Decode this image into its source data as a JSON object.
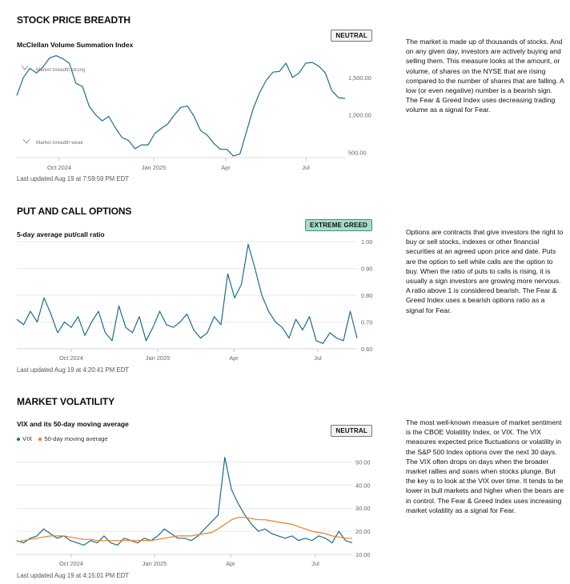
{
  "colors": {
    "vix": "#1a6e8c",
    "ma": "#ef7d21",
    "line": "#1a6e8c",
    "grid": "#e3e3e3"
  },
  "breadth": {
    "title": "STOCK PRICE BREADTH",
    "subtitle": "McClellan Volume Summation Index",
    "badge": "NEUTRAL",
    "annot_strong": "Market breadth strong",
    "annot_weak": "Market breadth weak",
    "updated": "Last updated Aug 19 at 7:59:59 PM EDT",
    "description": "The market is made up of thousands of stocks. And on any given day, investors are actively buying and selling them. This measure looks at the amount, or volume, of shares on the NYSE that are rising compared to the number of shares that are falling. A low (or even negative) number is a bearish sign. The Fear & Greed Index uses decreasing trading volume as a signal for Fear."
  },
  "options": {
    "title": "PUT AND CALL OPTIONS",
    "subtitle": "5-day average put/call ratio",
    "badge": "EXTREME GREED",
    "updated": "Last updated Aug 19 at 4:20:41 PM EDT",
    "description": "Options are contracts that give investors the right to buy or sell stocks, indexes or other financial securities at an agreed upon price and date. Puts are the option to sell while calls are the option to buy. When the ratio of puts to calls is rising, it is usually a sign investors are growing more nervous. A ratio above 1 is considered bearish. The Fear & Greed Index uses a bearish options ratio as a signal for Fear."
  },
  "volatility": {
    "title": "MARKET VOLATILITY",
    "subtitle": "VIX and its 50-day moving average",
    "legend_vix": "VIX",
    "legend_ma": "50-day moving average",
    "badge": "NEUTRAL",
    "updated": "Last updated Aug 19 at 4:15:01 PM EDT",
    "description": "The most well-known measure of market sentiment is the CBOE Volatility Index, or VIX. The VIX measures expected price fluctuations or volatility in the S&P 500 Index options over the next 30 days. The VIX often drops on days when the broader market rallies and soars when stocks plunge. But the key is to look at the VIX over time. It tends to be lower in bull markets and higher when the bears are in control. The Fear & Greed Index uses increasing market volatility as a signal for Fear."
  },
  "chart_data": [
    {
      "type": "line",
      "title": "McClellan Volume Summation Index",
      "x_ticks": [
        "Oct 2024",
        "Jan 2025",
        "Apr",
        "Jul"
      ],
      "y_ticks": [
        "1,500.00",
        "1,000.00",
        "500.00"
      ],
      "y_tick_values": [
        1500,
        1000,
        500
      ],
      "ylim": [
        430,
        1850
      ],
      "x": [
        0,
        0.02,
        0.04,
        0.06,
        0.08,
        0.1,
        0.12,
        0.14,
        0.16,
        0.18,
        0.2,
        0.22,
        0.24,
        0.26,
        0.28,
        0.3,
        0.32,
        0.34,
        0.36,
        0.38,
        0.4,
        0.42,
        0.44,
        0.46,
        0.48,
        0.5,
        0.52,
        0.54,
        0.56,
        0.58,
        0.6,
        0.62,
        0.64,
        0.66,
        0.68,
        0.7,
        0.72,
        0.74,
        0.76,
        0.78,
        0.8,
        0.82,
        0.84,
        0.86,
        0.88,
        0.9,
        0.92,
        0.94,
        0.96,
        0.98,
        1.0
      ],
      "series": [
        {
          "name": "McClellan Volume Summation Index",
          "values": [
            1260,
            1500,
            1620,
            1560,
            1640,
            1760,
            1790,
            1750,
            1690,
            1420,
            1380,
            1120,
            1000,
            920,
            980,
            830,
            700,
            660,
            550,
            600,
            600,
            750,
            820,
            880,
            1000,
            1100,
            1120,
            980,
            790,
            730,
            620,
            540,
            540,
            450,
            480,
            780,
            1080,
            1300,
            1460,
            1570,
            1580,
            1690,
            1500,
            1560,
            1690,
            1700,
            1650,
            1560,
            1320,
            1230,
            1220
          ]
        }
      ]
    },
    {
      "type": "line",
      "title": "5-day average put/call ratio",
      "x_ticks": [
        "Oct 2024",
        "Jan 2025",
        "Apr",
        "Jul"
      ],
      "y_ticks": [
        "1.00",
        "0.90",
        "0.80",
        "0.70",
        "0.60"
      ],
      "y_tick_values": [
        1.0,
        0.9,
        0.8,
        0.7,
        0.6
      ],
      "ylim": [
        0.6,
        1.0
      ],
      "x": [
        0,
        0.02,
        0.04,
        0.06,
        0.08,
        0.1,
        0.12,
        0.14,
        0.16,
        0.18,
        0.2,
        0.22,
        0.24,
        0.26,
        0.28,
        0.3,
        0.32,
        0.34,
        0.36,
        0.38,
        0.4,
        0.42,
        0.44,
        0.46,
        0.48,
        0.5,
        0.52,
        0.54,
        0.56,
        0.58,
        0.6,
        0.62,
        0.64,
        0.66,
        0.68,
        0.7,
        0.72,
        0.74,
        0.76,
        0.78,
        0.8,
        0.82,
        0.84,
        0.86,
        0.88,
        0.9,
        0.92,
        0.94,
        0.96,
        0.98,
        1.0
      ],
      "series": [
        {
          "name": "Put/call ratio",
          "values": [
            0.71,
            0.69,
            0.74,
            0.7,
            0.79,
            0.73,
            0.66,
            0.7,
            0.68,
            0.72,
            0.65,
            0.7,
            0.74,
            0.66,
            0.63,
            0.76,
            0.68,
            0.66,
            0.72,
            0.63,
            0.68,
            0.74,
            0.69,
            0.68,
            0.7,
            0.73,
            0.67,
            0.64,
            0.66,
            0.72,
            0.69,
            0.88,
            0.79,
            0.84,
            0.99,
            0.9,
            0.8,
            0.74,
            0.7,
            0.68,
            0.64,
            0.71,
            0.67,
            0.72,
            0.63,
            0.62,
            0.66,
            0.64,
            0.63,
            0.74,
            0.64
          ]
        }
      ]
    },
    {
      "type": "line",
      "title": "VIX and its 50-day moving average",
      "x_ticks": [
        "Oct 2024",
        "Jan 2025",
        "Apr",
        "Jul"
      ],
      "y_ticks": [
        "50.00",
        "40.00",
        "30.00",
        "20.00",
        "10.00"
      ],
      "y_tick_values": [
        50,
        40,
        30,
        20,
        10
      ],
      "ylim": [
        10,
        55
      ],
      "x": [
        0,
        0.02,
        0.04,
        0.06,
        0.08,
        0.1,
        0.12,
        0.14,
        0.16,
        0.18,
        0.2,
        0.22,
        0.24,
        0.26,
        0.28,
        0.3,
        0.32,
        0.34,
        0.36,
        0.38,
        0.4,
        0.42,
        0.44,
        0.46,
        0.48,
        0.5,
        0.52,
        0.54,
        0.56,
        0.58,
        0.6,
        0.62,
        0.64,
        0.66,
        0.68,
        0.7,
        0.72,
        0.74,
        0.76,
        0.78,
        0.8,
        0.82,
        0.84,
        0.86,
        0.88,
        0.9,
        0.92,
        0.94,
        0.96,
        0.98,
        1.0
      ],
      "series": [
        {
          "name": "VIX",
          "values": [
            16,
            15,
            17,
            18,
            21,
            19,
            17,
            18,
            16,
            15,
            14,
            16,
            15,
            18,
            15,
            14,
            17,
            16,
            15,
            17,
            16,
            18,
            21,
            19,
            17,
            17,
            16,
            18,
            21,
            24,
            27,
            52,
            38,
            32,
            27,
            23,
            20,
            21,
            19,
            18,
            17,
            18,
            16,
            17,
            16,
            18,
            17,
            15,
            20,
            16,
            15
          ]
        },
        {
          "name": "50-day moving average",
          "values": [
            15.5,
            16,
            16.5,
            17,
            17.5,
            18,
            18,
            18,
            17.5,
            17,
            16.5,
            16.5,
            16,
            16,
            16,
            16,
            16,
            16,
            16,
            16,
            16,
            16.5,
            17,
            17.5,
            18,
            18,
            18,
            18.5,
            19,
            19.5,
            21,
            23,
            25,
            26,
            26,
            25.5,
            25,
            25,
            24.5,
            24,
            23.5,
            23,
            22,
            21,
            20,
            19.5,
            19,
            18,
            17.5,
            17,
            17
          ]
        }
      ]
    }
  ]
}
